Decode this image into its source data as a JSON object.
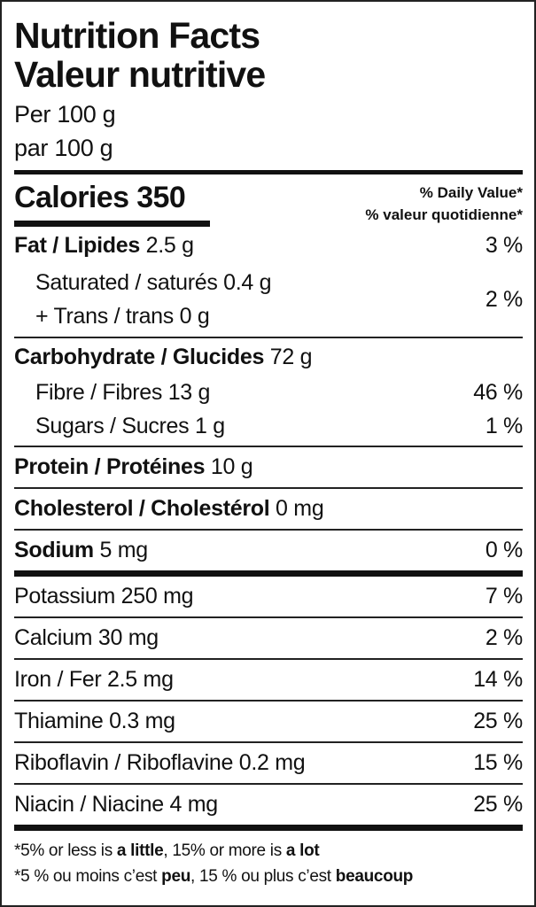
{
  "title_en": "Nutrition Facts",
  "title_fr": "Valeur nutritive",
  "serving_en": "Per 100 g",
  "serving_fr": "par 100 g",
  "calories": {
    "label": "Calories",
    "value": "350"
  },
  "daily_value_en": "% Daily Value*",
  "daily_value_fr": "% valeur quotidienne*",
  "fat": {
    "label": "Fat / Lipides",
    "amount": "2.5 g",
    "dv": "3 %"
  },
  "saturated": {
    "label": "Saturated / saturés 0.4 g"
  },
  "trans": {
    "label": "+ Trans / trans 0 g"
  },
  "sat_trans_dv": "2 %",
  "carbohydrate": {
    "label": "Carbohydrate / Glucides",
    "amount": "72 g"
  },
  "fibre": {
    "label": "Fibre / Fibres 13 g",
    "dv": "46 %"
  },
  "sugars": {
    "label": "Sugars / Sucres 1 g",
    "dv": "1 %"
  },
  "protein": {
    "label": "Protein / Protéines",
    "amount": "10 g"
  },
  "cholesterol": {
    "label": "Cholesterol / Cholestérol",
    "amount": "0 mg"
  },
  "sodium": {
    "label": "Sodium",
    "amount": "5 mg",
    "dv": "0 %"
  },
  "micronutrients": [
    {
      "label": "Potassium 250 mg",
      "dv": "7 %"
    },
    {
      "label": "Calcium 30 mg",
      "dv": "2 %"
    },
    {
      "label": "Iron / Fer 2.5 mg",
      "dv": "14 %"
    },
    {
      "label": "Thiamine 0.3 mg",
      "dv": "25 %"
    },
    {
      "label": "Riboflavin / Riboflavine 0.2 mg",
      "dv": "15 %"
    },
    {
      "label": "Niacin / Niacine 4 mg",
      "dv": "25 %"
    }
  ],
  "footnote_en": {
    "a": "*5% or less is ",
    "b": "a little",
    "c": ", 15% or more is ",
    "d": "a lot"
  },
  "footnote_fr": {
    "a": "*5 % ou moins c’est ",
    "b": "peu",
    "c": ", 15 % ou plus c’est ",
    "d": "beaucoup"
  }
}
